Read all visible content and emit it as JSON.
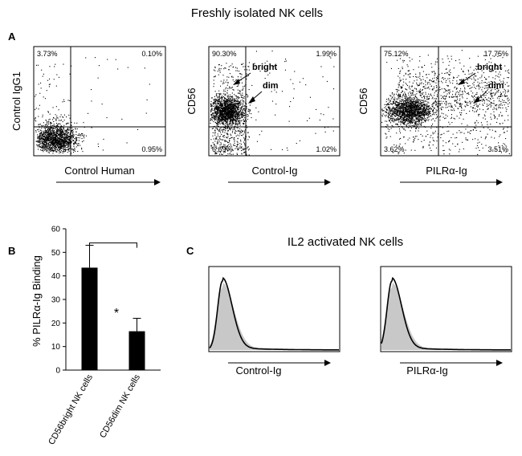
{
  "figure": {
    "title_top": "Freshly isolated NK cells",
    "title_c": "IL2 activated NK cells",
    "panel_a": "A",
    "panel_b": "B",
    "panel_c": "C"
  },
  "flow_plots": [
    {
      "ylabel": "Control IgG1",
      "xlabel": "Control Human",
      "q_ul": "3.73%",
      "q_ur": "0.10%",
      "q_ll": "",
      "q_lr": "0.95%",
      "ann_bright": "",
      "ann_dim": "",
      "population": "lowleft"
    },
    {
      "ylabel": "CD56",
      "xlabel": "Control-Ig",
      "q_ul": "90.30%",
      "q_ur": "1.99%",
      "q_ll": "6.69%",
      "q_lr": "1.02%",
      "ann_bright": "bright",
      "ann_dim": "dim",
      "population": "ctrlig"
    },
    {
      "ylabel": "CD56",
      "xlabel": "PILRα-Ig",
      "q_ul": "75.12%",
      "q_ur": "17.75%",
      "q_ll": "3.62%",
      "q_lr": "3.51%",
      "ann_bright": "bright",
      "ann_dim": "dim",
      "population": "pilr"
    }
  ],
  "histograms": [
    {
      "xlabel": "Control-Ig"
    },
    {
      "xlabel": "PILRα-Ig"
    }
  ],
  "chart_data": {
    "type": "bar",
    "categories": [
      "CD56bright NK cells",
      "CD56dim NK cells"
    ],
    "values": [
      43.5,
      16.5
    ],
    "errors": [
      9.5,
      5.5
    ],
    "title": "",
    "xlabel": "",
    "ylabel": "% PILRα-Ig Binding",
    "ylim": [
      0,
      60
    ],
    "yticks": [
      0,
      10,
      20,
      30,
      40,
      50,
      60
    ],
    "significance": "*"
  },
  "colors": {
    "bar": "#000000",
    "histogram_fill": "#c8c8c8"
  }
}
